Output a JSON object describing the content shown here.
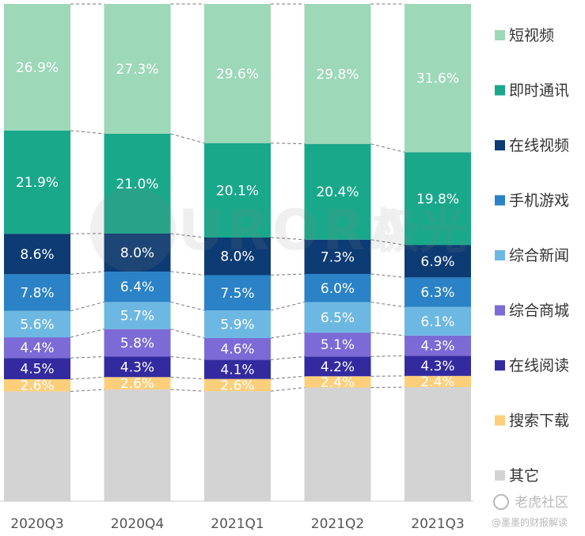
{
  "chart_data": {
    "type": "bar",
    "stacked": true,
    "normalized": true,
    "categories": [
      "2020Q3",
      "2020Q4",
      "2021Q1",
      "2021Q2",
      "2021Q3"
    ],
    "series": [
      {
        "name": "其它",
        "color": "#d3d3d3",
        "values": [
          23.3,
          23.5,
          23.4,
          24.2,
          24.3
        ],
        "labels": [
          "",
          "",
          "",
          "",
          ""
        ]
      },
      {
        "name": "搜索下载",
        "color": "#fdcf7a",
        "values": [
          2.6,
          2.6,
          2.6,
          2.4,
          2.4
        ],
        "labels": [
          "2.6%",
          "2.6%",
          "2.6%",
          "2.4%",
          "2.4%"
        ]
      },
      {
        "name": "在线阅读",
        "color": "#332aa0",
        "values": [
          4.5,
          4.3,
          4.1,
          4.2,
          4.3
        ],
        "labels": [
          "4.5%",
          "4.3%",
          "4.1%",
          "4.2%",
          "4.3%"
        ]
      },
      {
        "name": "综合商城",
        "color": "#7c6ad6",
        "values": [
          4.4,
          5.8,
          4.6,
          5.1,
          4.3
        ],
        "labels": [
          "4.4%",
          "5.8%",
          "4.6%",
          "5.1%",
          "4.3%"
        ]
      },
      {
        "name": "综合新闻",
        "color": "#6db8e2",
        "values": [
          5.6,
          5.7,
          5.9,
          6.5,
          6.1
        ],
        "labels": [
          "5.6%",
          "5.7%",
          "5.9%",
          "6.5%",
          "6.1%"
        ]
      },
      {
        "name": "手机游戏",
        "color": "#2b82c6",
        "values": [
          7.8,
          6.4,
          7.5,
          6.0,
          6.3
        ],
        "labels": [
          "7.8%",
          "6.4%",
          "7.5%",
          "6.0%",
          "6.3%"
        ]
      },
      {
        "name": "在线视频",
        "color": "#0d3b73",
        "values": [
          8.6,
          8.0,
          8.0,
          7.3,
          6.9
        ],
        "labels": [
          "8.6%",
          "8.0%",
          "8.0%",
          "7.3%",
          "6.9%"
        ]
      },
      {
        "name": "即时通讯",
        "color": "#1aa88b",
        "values": [
          21.9,
          21.0,
          20.1,
          20.4,
          19.8
        ],
        "labels": [
          "21.9%",
          "21.0%",
          "20.1%",
          "20.4%",
          "19.8%"
        ]
      },
      {
        "name": "短视频",
        "color": "#9dd8b8",
        "values": [
          26.9,
          27.3,
          29.6,
          29.8,
          31.6
        ],
        "labels": [
          "26.9%",
          "27.3%",
          "29.6%",
          "29.8%",
          "31.6%"
        ]
      }
    ],
    "ylim": [
      0,
      100
    ],
    "grid": false,
    "legend_position": "right",
    "legend_order": [
      "短视频",
      "即时通讯",
      "在线视频",
      "手机游戏",
      "综合新闻",
      "综合商城",
      "在线阅读",
      "搜索下载",
      "其它"
    ],
    "connector_lines": "dashed"
  },
  "watermark": {
    "brand": "URORA",
    "brand_cn": "极光",
    "community": "老虎社区",
    "credit": "@墨墨的财报解读"
  }
}
